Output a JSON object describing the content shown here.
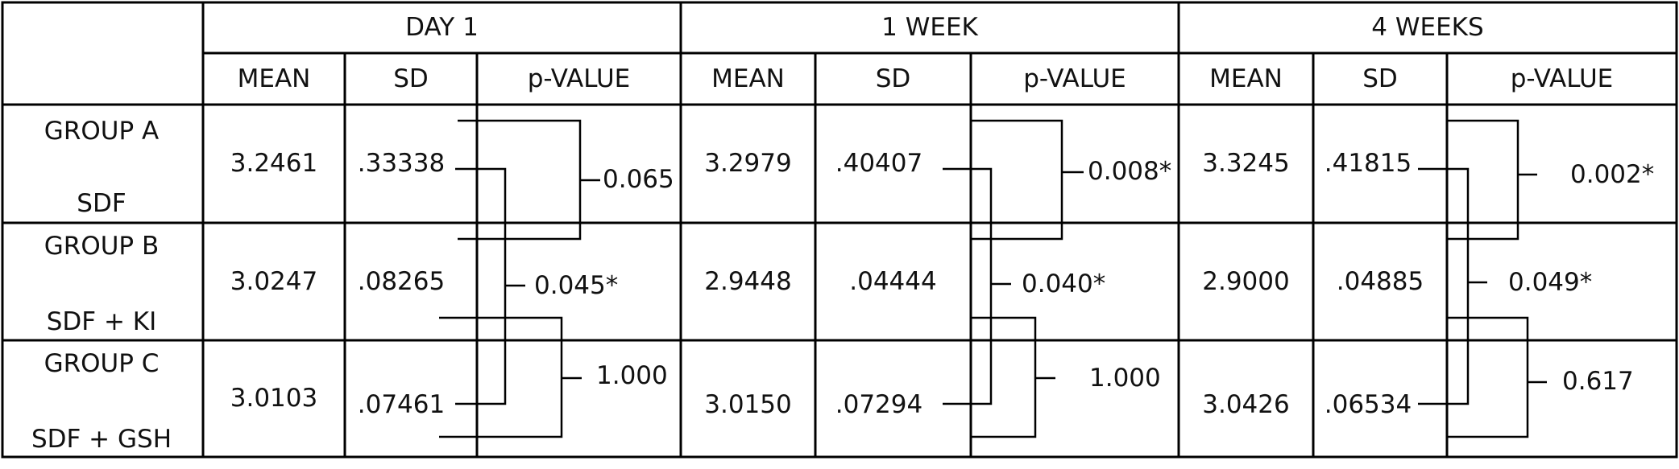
{
  "periods": [
    {
      "label": "DAY 1",
      "headers": {
        "mean": "MEAN",
        "sd": "SD",
        "p": "p-VALUE"
      },
      "rows": [
        {
          "mean": "3.2461",
          "sd": ".33338"
        },
        {
          "mean": "3.0247",
          "sd": ".08265"
        },
        {
          "mean": "3.0103",
          "sd": ".07461"
        }
      ],
      "p_values": {
        "a_vs_b": "0.065",
        "a_vs_c": "0.045*",
        "b_vs_c": "1.000"
      }
    },
    {
      "label": "1 WEEK",
      "headers": {
        "mean": "MEAN",
        "sd": "SD",
        "p": "p-VALUE"
      },
      "rows": [
        {
          "mean": "3.2979",
          "sd": ".40407"
        },
        {
          "mean": "2.9448",
          "sd": ".04444"
        },
        {
          "mean": "3.0150",
          "sd": ".07294"
        }
      ],
      "p_values": {
        "a_vs_b": "0.008*",
        "a_vs_c": "0.040*",
        "b_vs_c": "1.000"
      }
    },
    {
      "label": "4 WEEKS",
      "headers": {
        "mean": "MEAN",
        "sd": "SD",
        "p": "p-VALUE"
      },
      "rows": [
        {
          "mean": "3.3245",
          "sd": ".41815"
        },
        {
          "mean": "2.9000",
          "sd": ".04885"
        },
        {
          "mean": "3.0426",
          "sd": ".06534"
        }
      ],
      "p_values": {
        "a_vs_b": "0.002*",
        "a_vs_c": "0.049*",
        "b_vs_c": "0.617"
      }
    }
  ],
  "groups": [
    {
      "name": "GROUP A",
      "treatment": "SDF"
    },
    {
      "name": "GROUP B",
      "treatment": "SDF + KI"
    },
    {
      "name": "GROUP C",
      "treatment": "SDF + GSH"
    }
  ]
}
